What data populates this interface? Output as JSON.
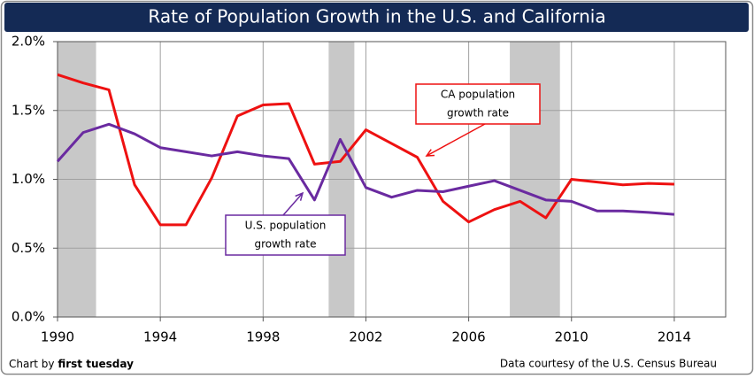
{
  "chart_data": {
    "type": "line",
    "title": "Rate of Population Growth in the U.S. and California",
    "x": [
      1990,
      1991,
      1992,
      1993,
      1994,
      1995,
      1996,
      1997,
      1998,
      1999,
      2000,
      2001,
      2002,
      2003,
      2004,
      2005,
      2006,
      2007,
      2008,
      2009,
      2010,
      2011,
      2012,
      2013,
      2014
    ],
    "series": [
      {
        "name": "CA population growth rate",
        "color": "#ee1111",
        "values": [
          1.76,
          1.7,
          1.65,
          0.96,
          0.67,
          0.67,
          1.01,
          1.46,
          1.54,
          1.55,
          1.11,
          1.13,
          1.36,
          1.26,
          1.16,
          0.84,
          0.69,
          0.78,
          0.84,
          0.72,
          1.0,
          0.98,
          0.96,
          0.97,
          0.965
        ]
      },
      {
        "name": "U.S. population growth rate",
        "color": "#6a2aa0",
        "values": [
          1.13,
          1.34,
          1.4,
          1.33,
          1.23,
          1.2,
          1.17,
          1.2,
          1.17,
          1.15,
          0.85,
          1.29,
          0.94,
          0.87,
          0.92,
          0.91,
          0.95,
          0.99,
          0.92,
          0.85,
          0.84,
          0.77,
          0.77,
          0.76,
          0.745
        ]
      }
    ],
    "annotations": [
      {
        "lines": [
          "CA population",
          "growth rate"
        ],
        "color": "#ee1111"
      },
      {
        "lines": [
          "U.S. population",
          "growth rate"
        ],
        "color": "#6a2aa0"
      }
    ],
    "shaded_periods": [
      [
        1990,
        1991.5
      ],
      [
        2000.55,
        2001.55
      ],
      [
        2007.6,
        2009.55
      ]
    ],
    "xlim": [
      1990,
      2016
    ],
    "xticks": [
      1990,
      1994,
      1998,
      2002,
      2006,
      2010,
      2014
    ],
    "ylim": [
      0,
      2
    ],
    "yticks": [
      {
        "value": 0,
        "label": "0.0%"
      },
      {
        "value": 0.5,
        "label": "0.5%"
      },
      {
        "value": 1,
        "label": "1.0%"
      },
      {
        "value": 1.5,
        "label": "1.5%"
      },
      {
        "value": 2,
        "label": "2.0%"
      }
    ],
    "grid": true,
    "credit": {
      "prefix": "Chart by",
      "name": "first tuesday"
    },
    "source": "Data courtesy of the U.S. Census Bureau"
  }
}
